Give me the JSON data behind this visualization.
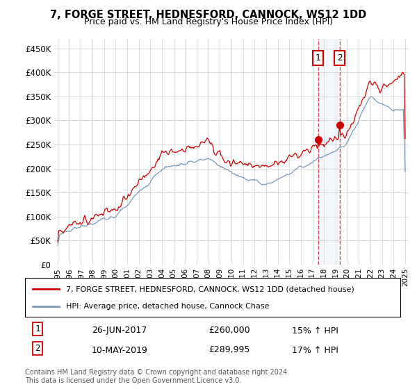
{
  "title": "7, FORGE STREET, HEDNESFORD, CANNOCK, WS12 1DD",
  "subtitle": "Price paid vs. HM Land Registry's House Price Index (HPI)",
  "ylabel_ticks": [
    "£0",
    "£50K",
    "£100K",
    "£150K",
    "£200K",
    "£250K",
    "£300K",
    "£350K",
    "£400K",
    "£450K"
  ],
  "ytick_values": [
    0,
    50000,
    100000,
    150000,
    200000,
    250000,
    300000,
    350000,
    400000,
    450000
  ],
  "ylim": [
    0,
    470000
  ],
  "xlim_start": 1994.7,
  "xlim_end": 2025.3,
  "red_line_color": "#cc0000",
  "blue_line_color": "#7799bb",
  "marker1_x": 2017.483,
  "marker1_y": 260000,
  "marker1_label": "1",
  "marker1_date": "26-JUN-2017",
  "marker1_price": "£260,000",
  "marker1_hpi": "15% ↑ HPI",
  "marker2_x": 2019.358,
  "marker2_y": 289995,
  "marker2_label": "2",
  "marker2_date": "10-MAY-2019",
  "marker2_price": "£289,995",
  "marker2_hpi": "17% ↑ HPI",
  "legend_line1": "7, FORGE STREET, HEDNESFORD, CANNOCK, WS12 1DD (detached house)",
  "legend_line2": "HPI: Average price, detached house, Cannock Chase",
  "footnote": "Contains HM Land Registry data © Crown copyright and database right 2024.\nThis data is licensed under the Open Government Licence v3.0.",
  "background_color": "#ffffff",
  "grid_color": "#cccccc"
}
